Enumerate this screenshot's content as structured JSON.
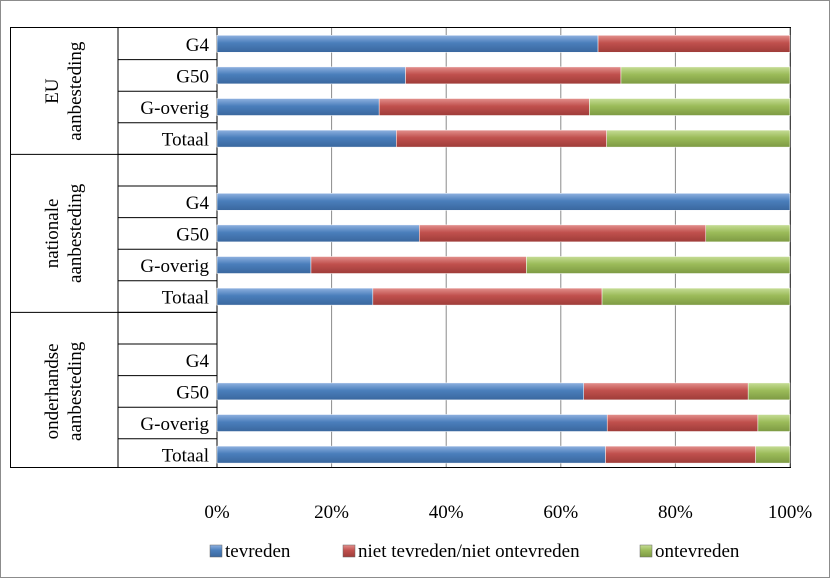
{
  "chart_data": {
    "type": "bar",
    "orientation": "horizontal",
    "stacked": "percent",
    "x_ticks": [
      "0%",
      "20%",
      "40%",
      "60%",
      "80%",
      "100%"
    ],
    "xlim": [
      0,
      100
    ],
    "grid": true,
    "legend_position": "bottom",
    "legend": [
      "tevreden",
      "niet tevreden/niet ontevreden",
      "ontevreden"
    ],
    "series_colors": [
      "#4a7ebb",
      "#be4b48",
      "#98b954"
    ],
    "groups": [
      {
        "label_lines": [
          "EU",
          "aanbesteding"
        ],
        "rows": [
          {
            "label": "G4",
            "values": [
              66.5,
              33.5,
              0
            ]
          },
          {
            "label": "G50",
            "values": [
              32.9,
              37.6,
              29.5
            ]
          },
          {
            "label": "G-overig",
            "values": [
              28.3,
              36.7,
              35.0
            ]
          },
          {
            "label": "Totaal",
            "values": [
              31.3,
              36.7,
              32.0
            ]
          }
        ]
      },
      {
        "label_lines": [
          "nationale",
          "aanbesteding"
        ],
        "rows": [
          {
            "label": "",
            "values": [
              0,
              0,
              0
            ]
          },
          {
            "label": "G4",
            "values": [
              100,
              0,
              0
            ]
          },
          {
            "label": "G50",
            "values": [
              35.3,
              50.0,
              14.7
            ]
          },
          {
            "label": "G-overig",
            "values": [
              16.4,
              37.6,
              46.0
            ]
          },
          {
            "label": "Totaal",
            "values": [
              27.2,
              40.0,
              32.8
            ]
          }
        ]
      },
      {
        "label_lines": [
          "onderhandse",
          "aanbesteding"
        ],
        "rows": [
          {
            "label": "",
            "values": [
              0,
              0,
              0
            ]
          },
          {
            "label": "G4",
            "values": [
              0,
              0,
              0
            ]
          },
          {
            "label": "G50",
            "values": [
              64.0,
              28.7,
              7.3
            ]
          },
          {
            "label": "G-overig",
            "values": [
              68.1,
              26.3,
              5.6
            ]
          },
          {
            "label": "Totaal",
            "values": [
              67.8,
              26.2,
              6.0
            ]
          }
        ]
      }
    ]
  }
}
